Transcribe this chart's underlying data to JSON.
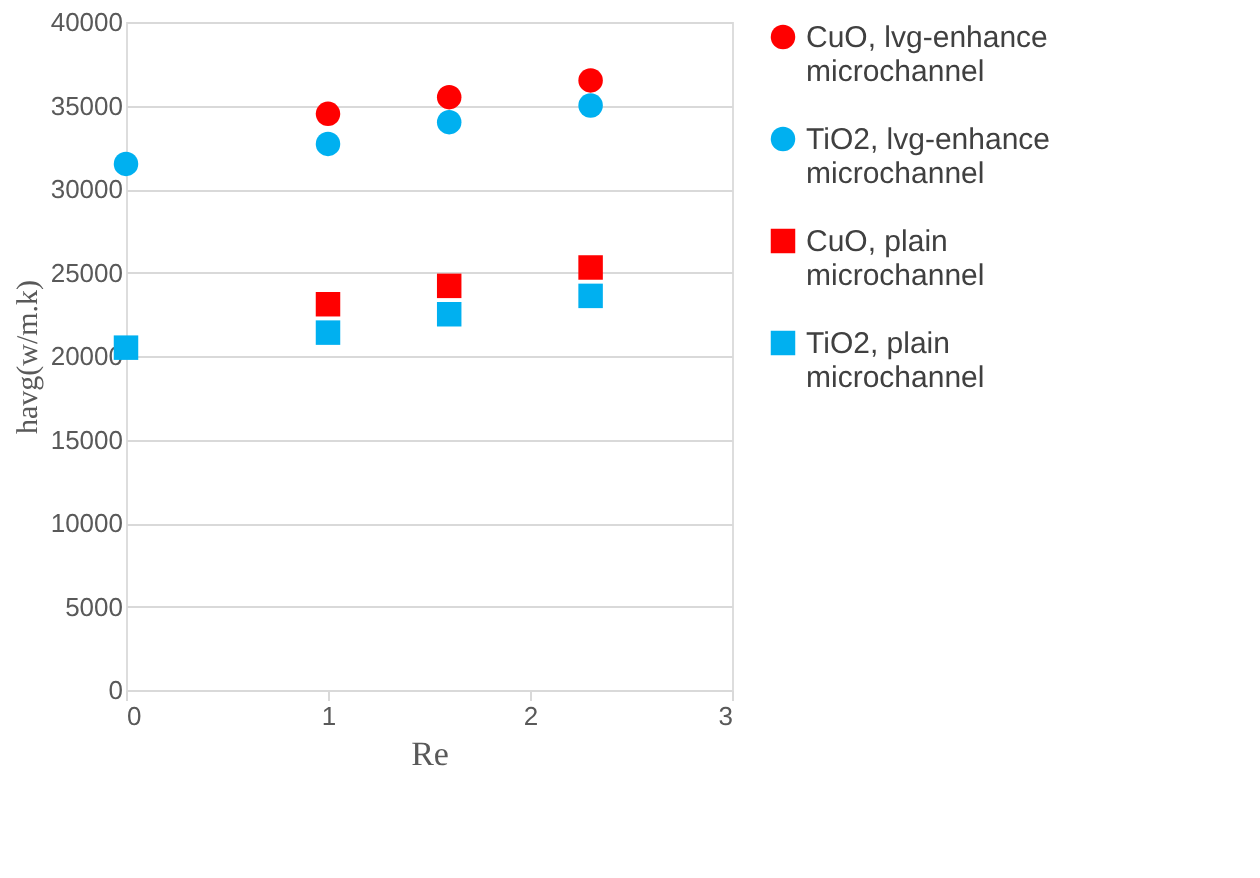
{
  "chart_data": {
    "type": "scatter",
    "xlabel": "Re",
    "ylabel": "havg(w/m.k)",
    "x": [
      0,
      1,
      1.6,
      2.3
    ],
    "xlim": [
      0,
      3
    ],
    "xticks": [
      0,
      1,
      2,
      3
    ],
    "ylim": [
      0,
      40000
    ],
    "yticks": [
      0,
      5000,
      10000,
      15000,
      20000,
      25000,
      30000,
      35000,
      40000
    ],
    "grid": "y",
    "legend": "right",
    "series": [
      {
        "name": "CuO, lvg-enhance microchannel",
        "color": "#ff0000",
        "marker": "circle",
        "values": [
          null,
          34500,
          35500,
          36500
        ]
      },
      {
        "name": "TiO2, lvg-enhance microchannel",
        "color": "#00b0f0",
        "marker": "circle",
        "values": [
          31500,
          32700,
          34000,
          35000
        ]
      },
      {
        "name": "CuO, plain microchannel",
        "color": "#ff0000",
        "marker": "square",
        "values": [
          null,
          23100,
          24200,
          25300
        ]
      },
      {
        "name": "TiO2, plain microchannel",
        "color": "#00b0f0",
        "marker": "square",
        "values": [
          20500,
          21400,
          22500,
          23600
        ]
      }
    ]
  }
}
